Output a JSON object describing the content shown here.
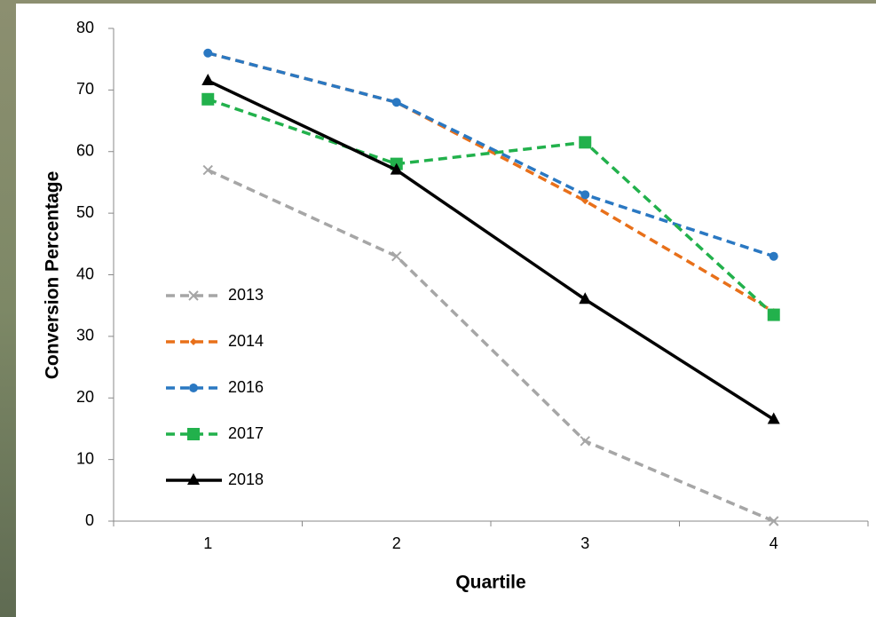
{
  "chart_data": {
    "type": "line",
    "x_label": "Quartile",
    "y_label": "Conversion Percentage",
    "categories": [
      "1",
      "2",
      "3",
      "4"
    ],
    "ylim": [
      0,
      80
    ],
    "yticks": [
      0,
      10,
      20,
      30,
      40,
      50,
      60,
      70,
      80
    ],
    "grid": false,
    "legend": "left",
    "series": [
      {
        "name": "2013",
        "color": "#a6a6a6",
        "dashed": true,
        "marker": "x",
        "values": [
          57,
          43,
          13,
          0
        ]
      },
      {
        "name": "2014",
        "color": "#e8701a",
        "dashed": true,
        "marker": "diamond",
        "values": [
          76,
          68,
          52,
          34
        ]
      },
      {
        "name": "2016",
        "color": "#2a78c2",
        "dashed": true,
        "marker": "circle",
        "values": [
          76,
          68,
          53,
          43
        ]
      },
      {
        "name": "2017",
        "color": "#22b14c",
        "dashed": true,
        "marker": "square",
        "values": [
          68.5,
          58,
          61.5,
          33.5
        ]
      },
      {
        "name": "2018",
        "color": "#000000",
        "dashed": false,
        "marker": "triangle",
        "values": [
          71.5,
          57,
          36,
          16.5
        ]
      }
    ]
  }
}
